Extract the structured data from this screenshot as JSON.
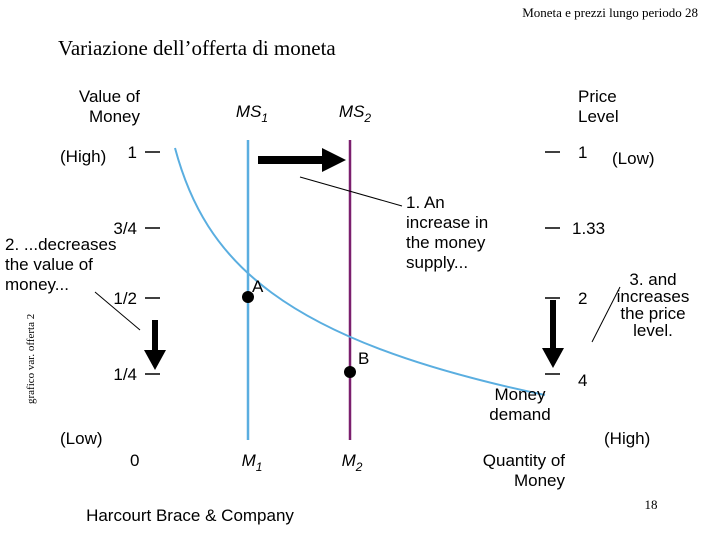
{
  "header": "Moneta e prezzi lungo periodo 28",
  "title": "Variazione dell’offerta di moneta",
  "side_label": "grafico var. offerta 2",
  "left_axis": {
    "title": [
      "Value of",
      "Money"
    ],
    "high": "(High)",
    "low": "(Low)",
    "ticks": [
      "1",
      "3/4",
      "1/2",
      "1/4"
    ]
  },
  "right_axis": {
    "title": [
      "Price",
      "Level"
    ],
    "low": "(Low)",
    "high": "(High)",
    "ticks": [
      "1",
      "1.33",
      "2",
      "4"
    ]
  },
  "x_axis": {
    "origin": "0",
    "title": [
      "Quantity of",
      "Money"
    ]
  },
  "curves": {
    "ms1": {
      "base": "MS",
      "sub": "1"
    },
    "ms2": {
      "base": "MS",
      "sub": "2"
    },
    "m1": {
      "base": "M",
      "sub": "1"
    },
    "m2": {
      "base": "M",
      "sub": "2"
    },
    "demand": [
      "Money",
      "demand"
    ]
  },
  "points": {
    "a": "A",
    "b": "B"
  },
  "annotations": {
    "step1": [
      "1. An",
      "increase in",
      "the money",
      "supply..."
    ],
    "step2": [
      "2. ...decreases",
      "the value of",
      "money..."
    ],
    "step3": [
      "3. and",
      "increases",
      "the price",
      "level."
    ]
  },
  "footer": {
    "publisher": "Harcourt Brace & Company",
    "page": "18"
  }
}
